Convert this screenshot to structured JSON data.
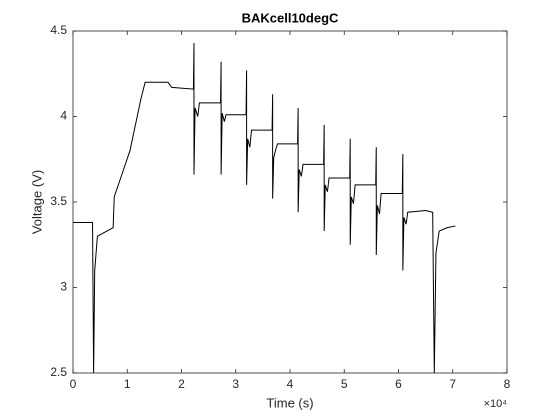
{
  "chart_data": {
    "type": "line",
    "title": "BAKcell10degC",
    "x_label": "Time (s)",
    "y_label": "Voltage (V)",
    "x_exponent_label": "×10⁴",
    "x": [
      0,
      3600,
      3800,
      4000,
      4500,
      7400,
      7600,
      9000,
      10500,
      11500,
      12500,
      13300,
      17500,
      18200,
      22200,
      22300,
      22300,
      22500,
      23000,
      23300,
      27200,
      27300,
      27300,
      27500,
      27900,
      28200,
      31900,
      32000,
      32000,
      32200,
      32600,
      32900,
      36700,
      36800,
      36800,
      37000,
      37400,
      37700,
      41400,
      41500,
      41500,
      41700,
      42100,
      42400,
      46200,
      46300,
      46300,
      46500,
      46900,
      47200,
      51000,
      51100,
      51100,
      51300,
      51700,
      52000,
      55800,
      55900,
      55900,
      56100,
      56500,
      56800,
      60700,
      60800,
      60800,
      61000,
      61400,
      61700,
      65000,
      66300,
      66600,
      66900,
      67500,
      69000,
      70500
    ],
    "series": [
      {
        "color": "#000000",
        "values": [
          3.38,
          3.38,
          2.5,
          3.1,
          3.3,
          3.35,
          3.53,
          3.66,
          3.8,
          3.95,
          4.1,
          4.2,
          4.2,
          4.17,
          4.16,
          4.43,
          3.66,
          4.05,
          4.0,
          4.08,
          4.08,
          4.32,
          3.66,
          4.02,
          3.97,
          4.01,
          4.01,
          4.27,
          3.6,
          3.87,
          3.82,
          3.92,
          3.92,
          4.13,
          3.52,
          3.76,
          3.81,
          3.84,
          3.84,
          4.05,
          3.44,
          3.69,
          3.65,
          3.72,
          3.72,
          3.95,
          3.33,
          3.6,
          3.56,
          3.64,
          3.64,
          3.87,
          3.25,
          3.53,
          3.49,
          3.6,
          3.6,
          3.82,
          3.19,
          3.48,
          3.43,
          3.55,
          3.55,
          3.78,
          3.1,
          3.41,
          3.37,
          3.44,
          3.45,
          3.44,
          2.5,
          3.2,
          3.33,
          3.35,
          3.36
        ]
      }
    ],
    "xlim": [
      0,
      80000
    ],
    "xticks": [
      {
        "value": 0,
        "label": "0"
      },
      {
        "value": 10000,
        "label": "1"
      },
      {
        "value": 20000,
        "label": "2"
      },
      {
        "value": 30000,
        "label": "3"
      },
      {
        "value": 40000,
        "label": "4"
      },
      {
        "value": 50000,
        "label": "5"
      },
      {
        "value": 60000,
        "label": "6"
      },
      {
        "value": 70000,
        "label": "7"
      },
      {
        "value": 80000,
        "label": "8"
      }
    ],
    "ylim": [
      2.5,
      4.5
    ],
    "yticks": [
      2.5,
      3,
      3.5,
      4,
      4.5
    ]
  }
}
